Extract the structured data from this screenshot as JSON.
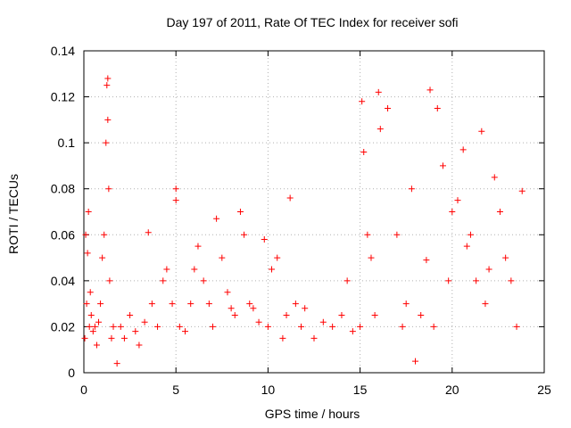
{
  "chart_data": {
    "type": "scatter",
    "title": "Day 197 of 2011, Rate Of TEC Index for receiver sofi",
    "xlabel": "GPS time / hours",
    "ylabel": "ROTI / TECUs",
    "xlim": [
      0,
      25
    ],
    "ylim": [
      0,
      0.14
    ],
    "xticks": [
      0,
      5,
      10,
      15,
      20,
      25
    ],
    "yticks": [
      0,
      0.02,
      0.04,
      0.06,
      0.08,
      0.1,
      0.12,
      0.14
    ],
    "grid": true,
    "marker": "+",
    "color": "#ff0000",
    "series": [
      {
        "x": [
          0.05,
          0.1,
          0.15,
          0.2,
          0.25,
          0.3,
          0.35,
          0.4,
          0.5,
          0.6,
          0.7,
          0.8,
          0.9,
          1.0,
          1.1,
          1.2,
          1.25,
          1.3,
          1.3,
          1.35,
          1.4,
          1.5,
          1.6,
          1.8,
          2.0,
          2.2,
          2.5,
          2.8,
          3.0,
          3.3,
          3.5,
          3.7,
          4.0,
          4.3,
          4.5,
          4.8,
          5.0,
          5.0,
          5.2,
          5.5,
          5.8,
          6.0,
          6.2,
          6.5,
          6.8,
          7.0,
          7.2,
          7.5,
          7.8,
          8.0,
          8.2,
          8.5,
          8.7,
          9.0,
          9.2,
          9.5,
          9.8,
          10.0,
          10.2,
          10.5,
          10.8,
          11.0,
          11.2,
          11.5,
          11.8,
          12.0,
          12.5,
          13.0,
          13.5,
          14.0,
          14.3,
          14.6,
          15.0,
          15.1,
          15.2,
          15.4,
          15.6,
          15.8,
          16.0,
          16.1,
          16.5,
          17.0,
          17.3,
          17.5,
          17.8,
          18.0,
          18.3,
          18.6,
          18.8,
          19.0,
          19.2,
          19.5,
          19.8,
          20.0,
          20.3,
          20.6,
          20.8,
          21.0,
          21.3,
          21.6,
          21.8,
          22.0,
          22.3,
          22.6,
          22.9,
          23.2,
          23.5,
          23.8
        ],
        "y": [
          0.015,
          0.06,
          0.03,
          0.052,
          0.07,
          0.02,
          0.035,
          0.025,
          0.018,
          0.02,
          0.012,
          0.022,
          0.03,
          0.05,
          0.06,
          0.1,
          0.125,
          0.128,
          0.11,
          0.08,
          0.04,
          0.015,
          0.02,
          0.004,
          0.02,
          0.015,
          0.025,
          0.018,
          0.012,
          0.022,
          0.061,
          0.03,
          0.02,
          0.04,
          0.045,
          0.03,
          0.08,
          0.075,
          0.02,
          0.018,
          0.03,
          0.045,
          0.055,
          0.04,
          0.03,
          0.02,
          0.067,
          0.05,
          0.035,
          0.028,
          0.025,
          0.07,
          0.06,
          0.03,
          0.028,
          0.022,
          0.058,
          0.02,
          0.045,
          0.05,
          0.015,
          0.025,
          0.076,
          0.03,
          0.02,
          0.028,
          0.015,
          0.022,
          0.02,
          0.025,
          0.04,
          0.018,
          0.02,
          0.118,
          0.096,
          0.06,
          0.05,
          0.025,
          0.122,
          0.106,
          0.115,
          0.06,
          0.02,
          0.03,
          0.08,
          0.005,
          0.025,
          0.049,
          0.123,
          0.02,
          0.115,
          0.09,
          0.04,
          0.07,
          0.075,
          0.097,
          0.055,
          0.06,
          0.04,
          0.105,
          0.03,
          0.045,
          0.085,
          0.07,
          0.05,
          0.04,
          0.02,
          0.079
        ]
      }
    ]
  }
}
